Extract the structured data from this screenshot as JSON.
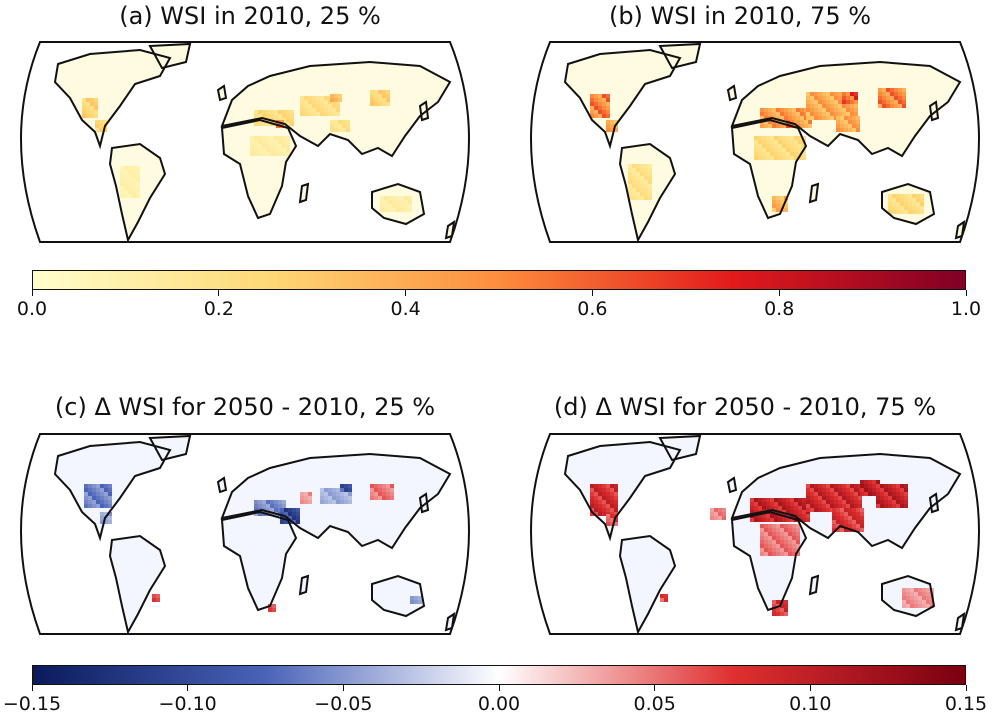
{
  "panels": [
    {
      "id": "a",
      "title": "(a) WSI in 2010, 25 %",
      "scale": "seq",
      "hotspots_level": "low"
    },
    {
      "id": "b",
      "title": "(b) WSI in 2010, 75 %",
      "scale": "seq",
      "hotspots_level": "high"
    },
    {
      "id": "c",
      "title": "(c) Δ WSI for 2050 - 2010, 25 %",
      "scale": "div",
      "hotspots_level": "mixed"
    },
    {
      "id": "d",
      "title": "(d) Δ WSI for 2050 - 2010, 75 %",
      "scale": "div",
      "hotspots_level": "positive"
    }
  ],
  "colorbar_top": {
    "colormap": "YlOrRd",
    "range": [
      0.0,
      1.0
    ],
    "ticks": [
      "0.0",
      "0.2",
      "0.4",
      "0.6",
      "0.8",
      "1.0"
    ],
    "colors": [
      "#ffffcc",
      "#fed976",
      "#fd8d3c",
      "#e31a1c",
      "#800026"
    ]
  },
  "colorbar_bottom": {
    "colormap": "seismic-like",
    "range": [
      -0.15,
      0.15
    ],
    "ticks": [
      "−0.15",
      "−0.10",
      "−0.05",
      "0.00",
      "0.05",
      "0.10",
      "0.15"
    ],
    "colors": [
      "#0a1a5c",
      "#4a63b8",
      "#ffffff",
      "#e03030",
      "#7a0010"
    ]
  }
}
